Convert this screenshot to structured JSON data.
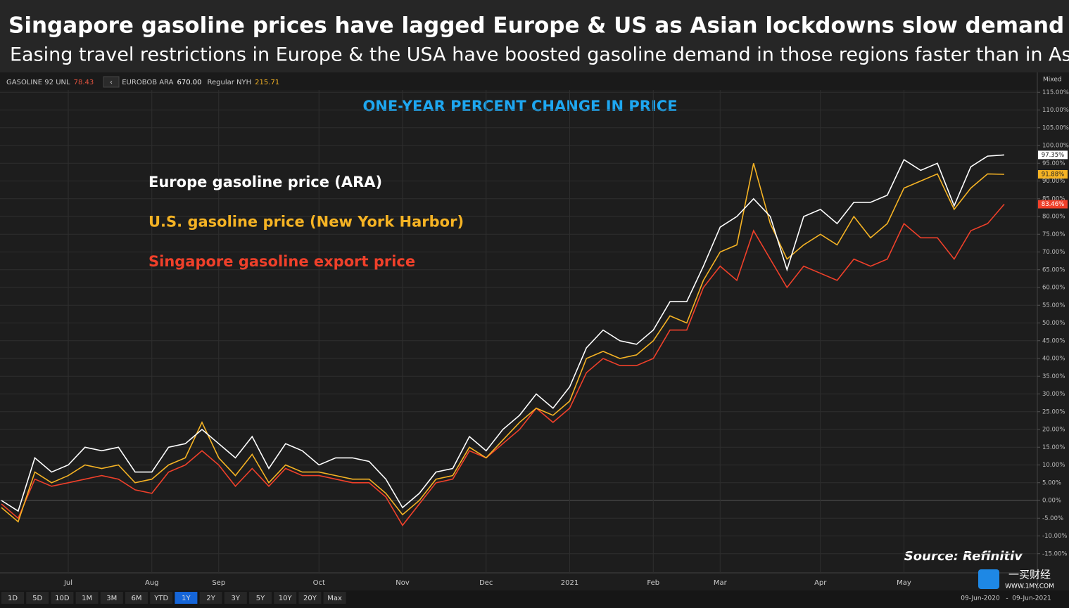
{
  "header": {
    "title": "Singapore gasoline prices have lagged Europe & US as Asian lockdowns slow demand recovery",
    "subtitle": "Easing travel restrictions in Europe & the USA have boosted gasoline demand in those regions faster than in Asia"
  },
  "toolbar": {
    "items": [
      {
        "name": "GASOLINE 92 UNL",
        "price": "78.43"
      },
      {
        "name": "EUROBOB ARA",
        "price": "670.00"
      },
      {
        "name": "Regular NYH",
        "price": "215.71"
      }
    ],
    "scale_mode": "Mixed",
    "ranges": [
      "1D",
      "5D",
      "10D",
      "1M",
      "3M",
      "6M",
      "YTD",
      "1Y",
      "2Y",
      "3Y",
      "5Y",
      "10Y",
      "20Y",
      "Max"
    ],
    "active_range": "1Y",
    "date_from": "09-Jun-2020",
    "date_to": "09-Jun-2021"
  },
  "logo": {
    "name": "一买财经",
    "url": "WWW.1MY.COM"
  },
  "chart_data": {
    "type": "line",
    "title": "ONE-YEAR PERCENT CHANGE IN PRICE",
    "source": "Source: Refinitiv",
    "categories": [
      null,
      null,
      null,
      null,
      "Jul",
      null,
      null,
      null,
      null,
      "Aug",
      null,
      null,
      null,
      "Sep",
      null,
      null,
      null,
      null,
      null,
      "Oct",
      null,
      null,
      null,
      null,
      "Nov",
      null,
      null,
      null,
      null,
      "Dec",
      null,
      null,
      null,
      null,
      "2021",
      null,
      null,
      null,
      null,
      "Feb",
      null,
      null,
      null,
      "Mar",
      null,
      null,
      null,
      null,
      null,
      "Apr",
      null,
      null,
      null,
      null,
      "May",
      null,
      null,
      null,
      null,
      null,
      null
    ],
    "series": [
      {
        "name": "Europe gasoline price (ARA)",
        "color": "#ffffff",
        "last_value_label": "97.35%",
        "values": [
          0,
          -3,
          12,
          8,
          10,
          15,
          14,
          15,
          8,
          8,
          15,
          16,
          20,
          16,
          12,
          18,
          9,
          16,
          14,
          10,
          12,
          12,
          11,
          6,
          -2,
          2,
          8,
          9,
          18,
          14,
          20,
          24,
          30,
          26,
          32,
          43,
          48,
          45,
          44,
          48,
          56,
          56,
          66,
          77,
          80,
          85,
          80,
          65,
          80,
          82,
          78,
          84,
          84,
          86,
          96,
          93,
          95,
          83,
          94,
          97,
          97.35
        ]
      },
      {
        "name": "U.S. gasoline price (New York Harbor)",
        "color": "#f5b324",
        "last_value_label": "91.88%",
        "values": [
          -2,
          -6,
          8,
          5,
          7,
          10,
          9,
          10,
          5,
          6,
          10,
          12,
          22,
          12,
          7,
          13,
          5,
          10,
          8,
          8,
          7,
          6,
          6,
          2,
          -4,
          0,
          6,
          7,
          15,
          12,
          17,
          22,
          26,
          24,
          28,
          40,
          42,
          40,
          41,
          45,
          52,
          50,
          62,
          70,
          72,
          95,
          78,
          68,
          72,
          75,
          72,
          80,
          74,
          78,
          88,
          90,
          92,
          82,
          88,
          92,
          91.88
        ]
      },
      {
        "name": "Singapore gasoline export price",
        "color": "#f0402a",
        "last_value_label": "83.46%",
        "values": [
          -1,
          -5,
          6,
          4,
          5,
          6,
          7,
          6,
          3,
          2,
          8,
          10,
          14,
          10,
          4,
          9,
          4,
          9,
          7,
          7,
          6,
          5,
          5,
          1,
          -7,
          -1,
          5,
          6,
          14,
          12,
          16,
          20,
          26,
          22,
          26,
          36,
          40,
          38,
          38,
          40,
          48,
          48,
          60,
          66,
          62,
          76,
          68,
          60,
          66,
          64,
          62,
          68,
          66,
          68,
          78,
          74,
          74,
          68,
          76,
          78,
          83.46
        ]
      }
    ],
    "ylim": [
      -20,
      120
    ],
    "yticks": [
      {
        "value": -15,
        "label": "-15.00%"
      },
      {
        "value": -10,
        "label": "-10.00%"
      },
      {
        "value": -5,
        "label": "-5.00%"
      },
      {
        "value": 0,
        "label": "0.00%"
      },
      {
        "value": 5,
        "label": "5.00%"
      },
      {
        "value": 10,
        "label": "10.00%"
      },
      {
        "value": 15,
        "label": "15.00%"
      },
      {
        "value": 20,
        "label": "20.00%"
      },
      {
        "value": 25,
        "label": "25.00%"
      },
      {
        "value": 30,
        "label": "30.00%"
      },
      {
        "value": 35,
        "label": "35.00%"
      },
      {
        "value": 40,
        "label": "40.00%"
      },
      {
        "value": 45,
        "label": "45.00%"
      },
      {
        "value": 50,
        "label": "50.00%"
      },
      {
        "value": 55,
        "label": "55.00%"
      },
      {
        "value": 60,
        "label": "60.00%"
      },
      {
        "value": 65,
        "label": "65.00%"
      },
      {
        "value": 70,
        "label": "70.00%"
      },
      {
        "value": 75,
        "label": "75.00%"
      },
      {
        "value": 80,
        "label": "80.00%"
      },
      {
        "value": 85,
        "label": "85.00%"
      },
      {
        "value": 90,
        "label": "90.00%"
      },
      {
        "value": 95,
        "label": "95.00%"
      },
      {
        "value": 100,
        "label": "100.00%"
      },
      {
        "value": 105,
        "label": "105.00%"
      },
      {
        "value": 110,
        "label": "110.00%"
      },
      {
        "value": 115,
        "label": "115.00%"
      }
    ],
    "grid": true
  }
}
